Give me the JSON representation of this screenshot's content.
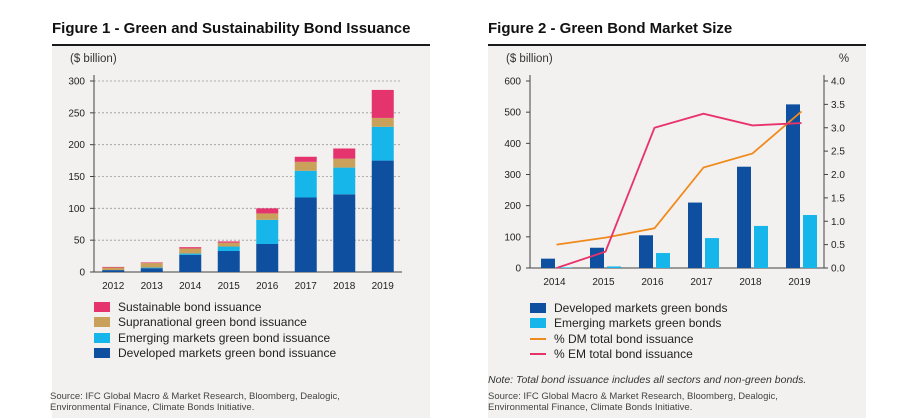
{
  "figure1": {
    "title": "Figure 1 - Green and Sustainability Bond Issuance",
    "source_line1": "Source: IFC Global Macro & Market Research, Bloomberg, Dealogic,",
    "source_line2": "Environmental Finance, Climate Bonds Initiative."
  },
  "figure2": {
    "title": "Figure 2 - Green Bond Market Size",
    "note": "Note: Total bond issuance includes all sectors and non-green bonds.",
    "source_line1": "Source: IFC Global Macro & Market Research, Bloomberg, Dealogic,",
    "source_line2": "Environmental Finance, Climate Bonds Initiative."
  },
  "chart_data": [
    {
      "type": "bar",
      "stacked": true,
      "title": "Figure 1 - Green and Sustainability Bond Issuance",
      "ylabel": "($ billion)",
      "ylim": [
        0,
        300
      ],
      "yticks": [
        0,
        50,
        100,
        150,
        200,
        250,
        300
      ],
      "grid": true,
      "legend_position": "bottom",
      "categories": [
        "2012",
        "2013",
        "2014",
        "2015",
        "2016",
        "2017",
        "2018",
        "2019"
      ],
      "series": [
        {
          "name": "Developed markets green bond issuance",
          "color": "#0f4fa0",
          "values": [
            3,
            6,
            27,
            33,
            44,
            117,
            122,
            175
          ]
        },
        {
          "name": "Emerging markets green bond issuance",
          "color": "#16b5ea",
          "values": [
            0,
            1,
            2,
            7,
            38,
            42,
            42,
            53
          ]
        },
        {
          "name": "Supranational green bond issuance",
          "color": "#c9a15a",
          "values": [
            4,
            7,
            8,
            6,
            10,
            14,
            14,
            14
          ]
        },
        {
          "name": "Sustainable bond issuance",
          "color": "#e5336e",
          "values": [
            1,
            1,
            2,
            2,
            8,
            8,
            16,
            44
          ]
        }
      ]
    },
    {
      "type": "bar",
      "subtype": "bar+line (dual axis)",
      "title": "Figure 2 - Green Bond Market Size",
      "ylabel": "($ billion)",
      "y2label": "%",
      "ylim": [
        0,
        600
      ],
      "yticks": [
        0,
        100,
        200,
        300,
        400,
        500,
        600
      ],
      "y2lim": [
        0,
        4.0
      ],
      "y2ticks": [
        "0.0",
        "0.5",
        "1.0",
        "1.5",
        "2.0",
        "2.5",
        "3.0",
        "3.5",
        "4.0"
      ],
      "grid": false,
      "legend_position": "bottom",
      "categories": [
        "2014",
        "2015",
        "2016",
        "2017",
        "2018",
        "2019"
      ],
      "bar_series": [
        {
          "name": "Developed markets green bonds",
          "color": "#0f4fa0",
          "axis": "left",
          "values": [
            30,
            65,
            105,
            210,
            325,
            525
          ]
        },
        {
          "name": "Emerging markets green bonds",
          "color": "#16b5ea",
          "axis": "left",
          "values": [
            2,
            5,
            48,
            96,
            135,
            170
          ]
        }
      ],
      "line_series": [
        {
          "name": "% DM total bond issuance",
          "color": "#f08a1c",
          "axis": "right",
          "values": [
            0.5,
            0.65,
            0.85,
            2.15,
            2.45,
            3.35
          ]
        },
        {
          "name": "% EM total bond issuance",
          "color": "#e8336a",
          "axis": "right",
          "values": [
            0.0,
            0.35,
            3.0,
            3.3,
            3.05,
            3.1
          ]
        }
      ]
    }
  ]
}
